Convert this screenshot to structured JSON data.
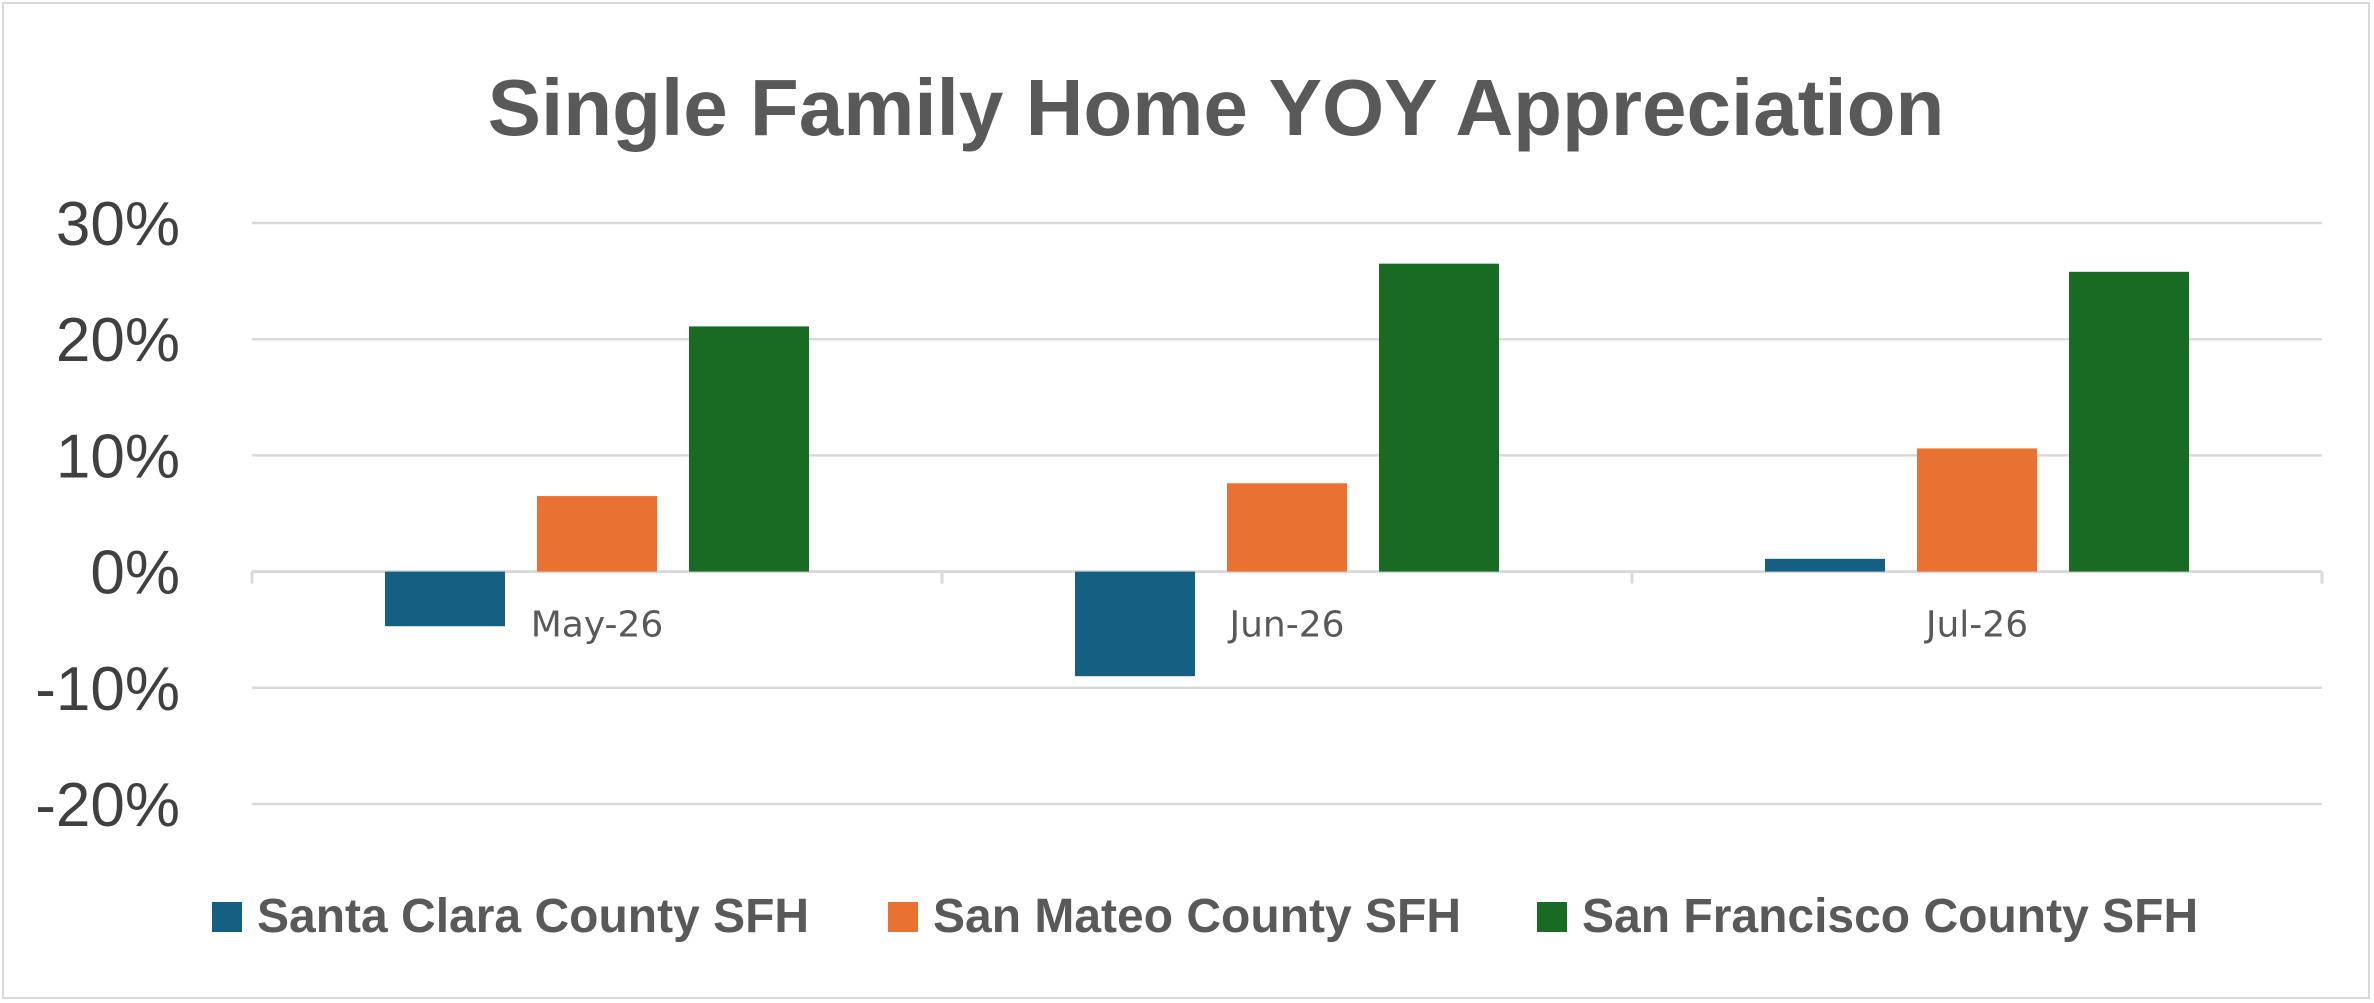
{
  "chart_data": {
    "type": "bar",
    "title": "Single Family Home YOY Appreciation",
    "categories": [
      "May-26",
      "Jun-26",
      "Jul-26"
    ],
    "series": [
      {
        "name": "Santa Clara County SFH",
        "color": "#156082",
        "values": [
          -4.7,
          -9.0,
          1.1
        ]
      },
      {
        "name": "San Mateo County SFH",
        "color": "#E97132",
        "values": [
          6.5,
          7.6,
          10.6
        ]
      },
      {
        "name": "San Francisco County SFH",
        "color": "#196B24",
        "values": [
          21.1,
          26.5,
          25.8
        ]
      }
    ],
    "y_ticks": [
      "30%",
      "20%",
      "10%",
      "0%",
      "-10%",
      "-20%"
    ],
    "y_tick_values": [
      30,
      20,
      10,
      0,
      -10,
      -20
    ],
    "ylim": [
      -20,
      30
    ],
    "grid": true,
    "legend_position": "bottom"
  }
}
